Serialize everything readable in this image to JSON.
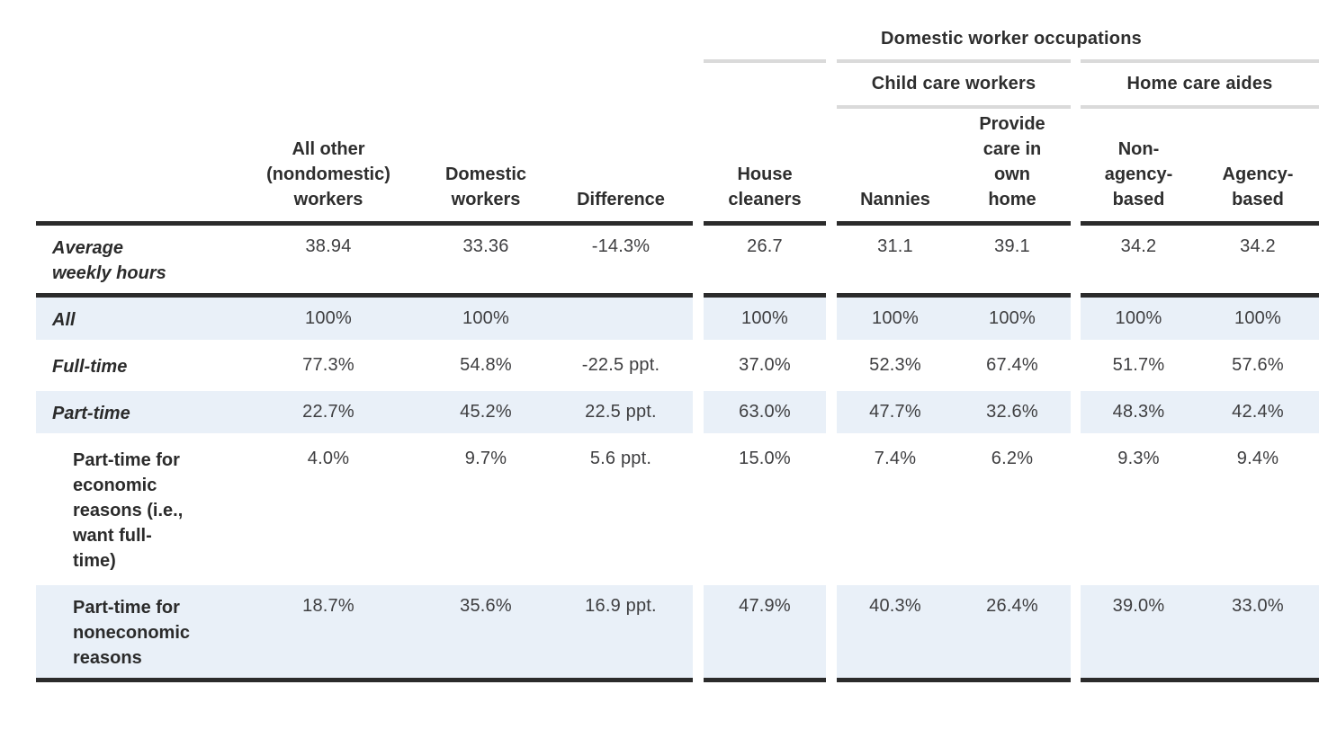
{
  "table": {
    "top_header": "Domestic worker occupations",
    "group_headers": [
      {
        "label": "Child care workers"
      },
      {
        "label": "Home care aides"
      }
    ],
    "columns": [
      "All other\n(nondomestic)\nworkers",
      "Domestic\nworkers",
      "Difference",
      "House\ncleaners",
      "Nannies",
      "Provide\ncare in\nown\nhome",
      "Non-\nagency-\nbased",
      "Agency-\nbased"
    ],
    "rows": [
      {
        "label": "Average\nweekly hours",
        "italic": true,
        "indent": false,
        "shaded": false,
        "values": [
          "38.94",
          "33.36",
          "-14.3%",
          "26.7",
          "31.1",
          "39.1",
          "34.2",
          "34.2"
        ]
      },
      {
        "label": "All",
        "italic": true,
        "indent": false,
        "shaded": true,
        "values": [
          "100%",
          "100%",
          "",
          "100%",
          "100%",
          "100%",
          "100%",
          "100%"
        ]
      },
      {
        "label": "Full-time",
        "italic": true,
        "indent": false,
        "shaded": false,
        "values": [
          "77.3%",
          "54.8%",
          "-22.5 ppt.",
          "37.0%",
          "52.3%",
          "67.4%",
          "51.7%",
          "57.6%"
        ]
      },
      {
        "label": "Part-time",
        "italic": true,
        "indent": false,
        "shaded": true,
        "values": [
          "22.7%",
          "45.2%",
          "22.5 ppt.",
          "63.0%",
          "47.7%",
          "32.6%",
          "48.3%",
          "42.4%"
        ]
      },
      {
        "label": "Part-time for\neconomic\nreasons (i.e.,\nwant full-\ntime)",
        "italic": false,
        "indent": true,
        "shaded": false,
        "values": [
          "4.0%",
          "9.7%",
          "5.6 ppt.",
          "15.0%",
          "7.4%",
          "6.2%",
          "9.3%",
          "9.4%"
        ]
      },
      {
        "label": "Part-time for\nnoneconomic\nreasons",
        "italic": false,
        "indent": true,
        "shaded": true,
        "values": [
          "18.7%",
          "35.6%",
          "16.9 ppt.",
          "47.9%",
          "40.3%",
          "26.4%",
          "39.0%",
          "33.0%"
        ]
      }
    ],
    "colors": {
      "shaded_row": "#e9f0f8",
      "rule_dark": "#2b2b2b",
      "rule_light": "#dadada"
    }
  },
  "chart_data": {
    "type": "table",
    "title": "Domestic worker occupations",
    "column_groups": [
      {
        "label": "Child care workers",
        "columns": [
          "Nannies",
          "Provide care in own home"
        ]
      },
      {
        "label": "Home care aides",
        "columns": [
          "Non-agency-based",
          "Agency-based"
        ]
      }
    ],
    "columns": [
      "All other (nondomestic) workers",
      "Domestic workers",
      "Difference",
      "House cleaners",
      "Nannies",
      "Provide care in own home",
      "Non-agency-based",
      "Agency-based"
    ],
    "rows": [
      {
        "label": "Average weekly hours",
        "values": [
          "38.94",
          "33.36",
          "-14.3%",
          "26.7",
          "31.1",
          "39.1",
          "34.2",
          "34.2"
        ]
      },
      {
        "label": "All",
        "values": [
          "100%",
          "100%",
          "",
          "100%",
          "100%",
          "100%",
          "100%",
          "100%"
        ]
      },
      {
        "label": "Full-time",
        "values": [
          "77.3%",
          "54.8%",
          "-22.5 ppt.",
          "37.0%",
          "52.3%",
          "67.4%",
          "51.7%",
          "57.6%"
        ]
      },
      {
        "label": "Part-time",
        "values": [
          "22.7%",
          "45.2%",
          "22.5 ppt.",
          "63.0%",
          "47.7%",
          "32.6%",
          "48.3%",
          "42.4%"
        ]
      },
      {
        "label": "Part-time for economic reasons (i.e., want full-time)",
        "values": [
          "4.0%",
          "9.7%",
          "5.6 ppt.",
          "15.0%",
          "7.4%",
          "6.2%",
          "9.3%",
          "9.4%"
        ]
      },
      {
        "label": "Part-time for noneconomic reasons",
        "values": [
          "18.7%",
          "35.6%",
          "16.9 ppt.",
          "47.9%",
          "40.3%",
          "26.4%",
          "39.0%",
          "33.0%"
        ]
      }
    ]
  }
}
